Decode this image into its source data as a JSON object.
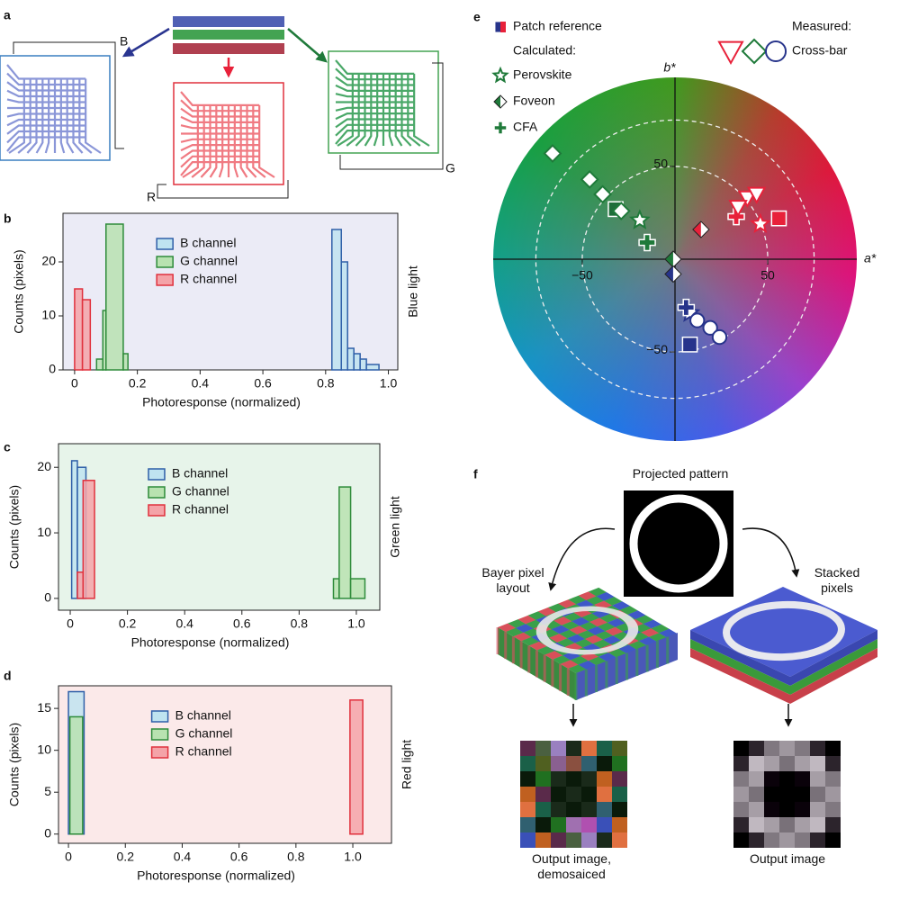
{
  "panel_labels": [
    "a",
    "b",
    "c",
    "d",
    "e",
    "f"
  ],
  "diagram_a": {
    "labels": [
      "B",
      "R",
      "G"
    ]
  },
  "chart_data": [
    {
      "type": "histogram",
      "annotation": "Blue light",
      "annotation_color": "#2f4fa0",
      "background": "#ebebf6",
      "xlabel": "Photoresponse (normalized)",
      "ylabel": "Counts (pixels)",
      "xlim": [
        -0.037,
        1.03
      ],
      "ylim": [
        0,
        29
      ],
      "xticks": [
        0,
        0.2,
        0.4,
        0.6,
        0.8,
        {
          "value": 1,
          "label": "1.0"
        }
      ],
      "yticks": [
        0,
        10,
        20
      ],
      "legend": "upper center",
      "series": [
        {
          "name": "B channel",
          "color": "#bfe3f0",
          "edgecolor": "#2f5fa8",
          "bins": [
            0.82,
            0.85,
            0.87,
            0.89,
            0.91,
            0.93,
            0.97
          ],
          "counts": [
            26,
            20,
            4,
            3,
            2,
            1
          ]
        },
        {
          "name": "G channel",
          "color": "#b8e2b0",
          "edgecolor": "#2e8b3a",
          "bins": [
            0.07,
            0.09,
            0.1,
            0.155,
            0.17
          ],
          "counts": [
            2,
            11,
            27,
            3
          ]
        },
        {
          "name": "R channel",
          "color": "#f4a3a8",
          "edgecolor": "#e0313d",
          "bins": [
            0,
            0.025,
            0.05
          ],
          "counts": [
            15,
            13
          ]
        }
      ]
    },
    {
      "type": "histogram",
      "annotation": "Green light",
      "annotation_color": "#2e9b3a",
      "background": "#e7f4ea",
      "xlabel": "Photoresponse (normalized)",
      "ylabel": "Counts (pixels)",
      "xlim": [
        -0.041,
        1.082
      ],
      "ylim": [
        -1.8,
        23.6
      ],
      "xticks": [
        0,
        0.2,
        0.4,
        0.6,
        0.8,
        {
          "value": 1,
          "label": "1.0"
        }
      ],
      "yticks": [
        0,
        10,
        20
      ],
      "legend": "upper center",
      "series": [
        {
          "name": "B channel",
          "color": "#bfe3f0",
          "edgecolor": "#2f5fa8",
          "bins": [
            0.005,
            0.025,
            0.055
          ],
          "counts": [
            21,
            20
          ]
        },
        {
          "name": "G channel",
          "color": "#b8e2b0",
          "edgecolor": "#2e8b3a",
          "bins": [
            0.92,
            0.94,
            0.98,
            1.03
          ],
          "counts": [
            3,
            17,
            3
          ]
        },
        {
          "name": "R channel",
          "color": "#f4a3a8",
          "edgecolor": "#e0313d",
          "bins": [
            0.025,
            0.045,
            0.085
          ],
          "counts": [
            4,
            18
          ]
        }
      ]
    },
    {
      "type": "histogram",
      "annotation": "Red light",
      "annotation_color": "#e0313d",
      "background": "#fbe9e9",
      "xlabel": "Photoresponse (normalized)",
      "ylabel": "Counts (pixels)",
      "xlim": [
        -0.035,
        1.136
      ],
      "ylim": [
        -1.1,
        17.7
      ],
      "xticks": [
        0,
        0.2,
        0.4,
        0.6,
        0.8,
        {
          "value": 1,
          "label": "1.0"
        }
      ],
      "yticks": [
        0,
        5,
        10,
        15
      ],
      "legend": "upper center",
      "series": [
        {
          "name": "B channel",
          "color": "#bfe3f0",
          "edgecolor": "#2f5fa8",
          "bins": [
            0,
            0.055
          ],
          "counts": [
            17
          ]
        },
        {
          "name": "G channel",
          "color": "#b8e2b0",
          "edgecolor": "#2e8b3a",
          "bins": [
            0.005,
            0.05
          ],
          "counts": [
            14
          ]
        },
        {
          "name": "R channel",
          "color": "#f4a3a8",
          "edgecolor": "#e0313d",
          "bins": [
            0.99,
            1.035
          ],
          "counts": [
            16
          ]
        }
      ]
    },
    {
      "type": "scatter",
      "xlabel": "a*",
      "ylabel": "b*",
      "xlim": [
        -98,
        98
      ],
      "ylim": [
        -98,
        98
      ],
      "xticks": [
        {
          "value": -50,
          "label": "−50"
        },
        50
      ],
      "yticks": [
        50,
        {
          "value": -50,
          "label": "−50"
        }
      ],
      "circles": [
        50,
        75
      ],
      "legend_headers": [
        "Calculated:",
        "Measured:"
      ],
      "series": [
        {
          "name": "Patch reference",
          "marker": "square",
          "colors": [
            "#1f6e3a",
            "#e8213a",
            "#27348b"
          ],
          "x": [
            -32,
            56,
            8
          ],
          "y": [
            27,
            22,
            -46
          ]
        },
        {
          "name": "Perovskite",
          "marker": "star",
          "colors": [
            "#1f7a3a",
            "#e8213a",
            "#27348b"
          ],
          "x": [
            -19,
            46,
            8
          ],
          "y": [
            21,
            19,
            -29
          ]
        },
        {
          "name": "Foveon",
          "marker": "halfdiamond",
          "colors": [
            "#1f7a3a",
            "#e8213a",
            "#27348b"
          ],
          "x": [
            -1,
            14,
            -1
          ],
          "y": [
            0,
            16,
            -8
          ]
        },
        {
          "name": "CFA",
          "marker": "cross",
          "colors": [
            "#1f7a3a",
            "#e8213a",
            "#27348b"
          ],
          "x": [
            -15,
            33,
            6
          ],
          "y": [
            9,
            23,
            -26
          ]
        },
        {
          "name": "Cross-bar",
          "markers": [
            "diamond",
            "diamond",
            "diamond",
            "diamond",
            "triangle",
            "triangle",
            "triangle",
            "circle",
            "circle",
            "circle"
          ],
          "colors": [
            "#1f7a3a",
            "#1f7a3a",
            "#1f7a3a",
            "#1f7a3a",
            "#e8213a",
            "#e8213a",
            "#e8213a",
            "#27348b",
            "#27348b",
            "#27348b"
          ],
          "x": [
            -66,
            -46,
            -39,
            -29,
            39,
            44,
            34,
            12,
            19,
            24
          ],
          "y": [
            57,
            43,
            35,
            26,
            33,
            35,
            28,
            -33,
            -37,
            -42
          ]
        }
      ]
    }
  ],
  "diagram_f": {
    "title": "Projected pattern",
    "left_label": "Bayer pixel layout",
    "right_label": "Stacked pixels",
    "left_output": "Output image, demosaiced",
    "right_output": "Output image"
  }
}
